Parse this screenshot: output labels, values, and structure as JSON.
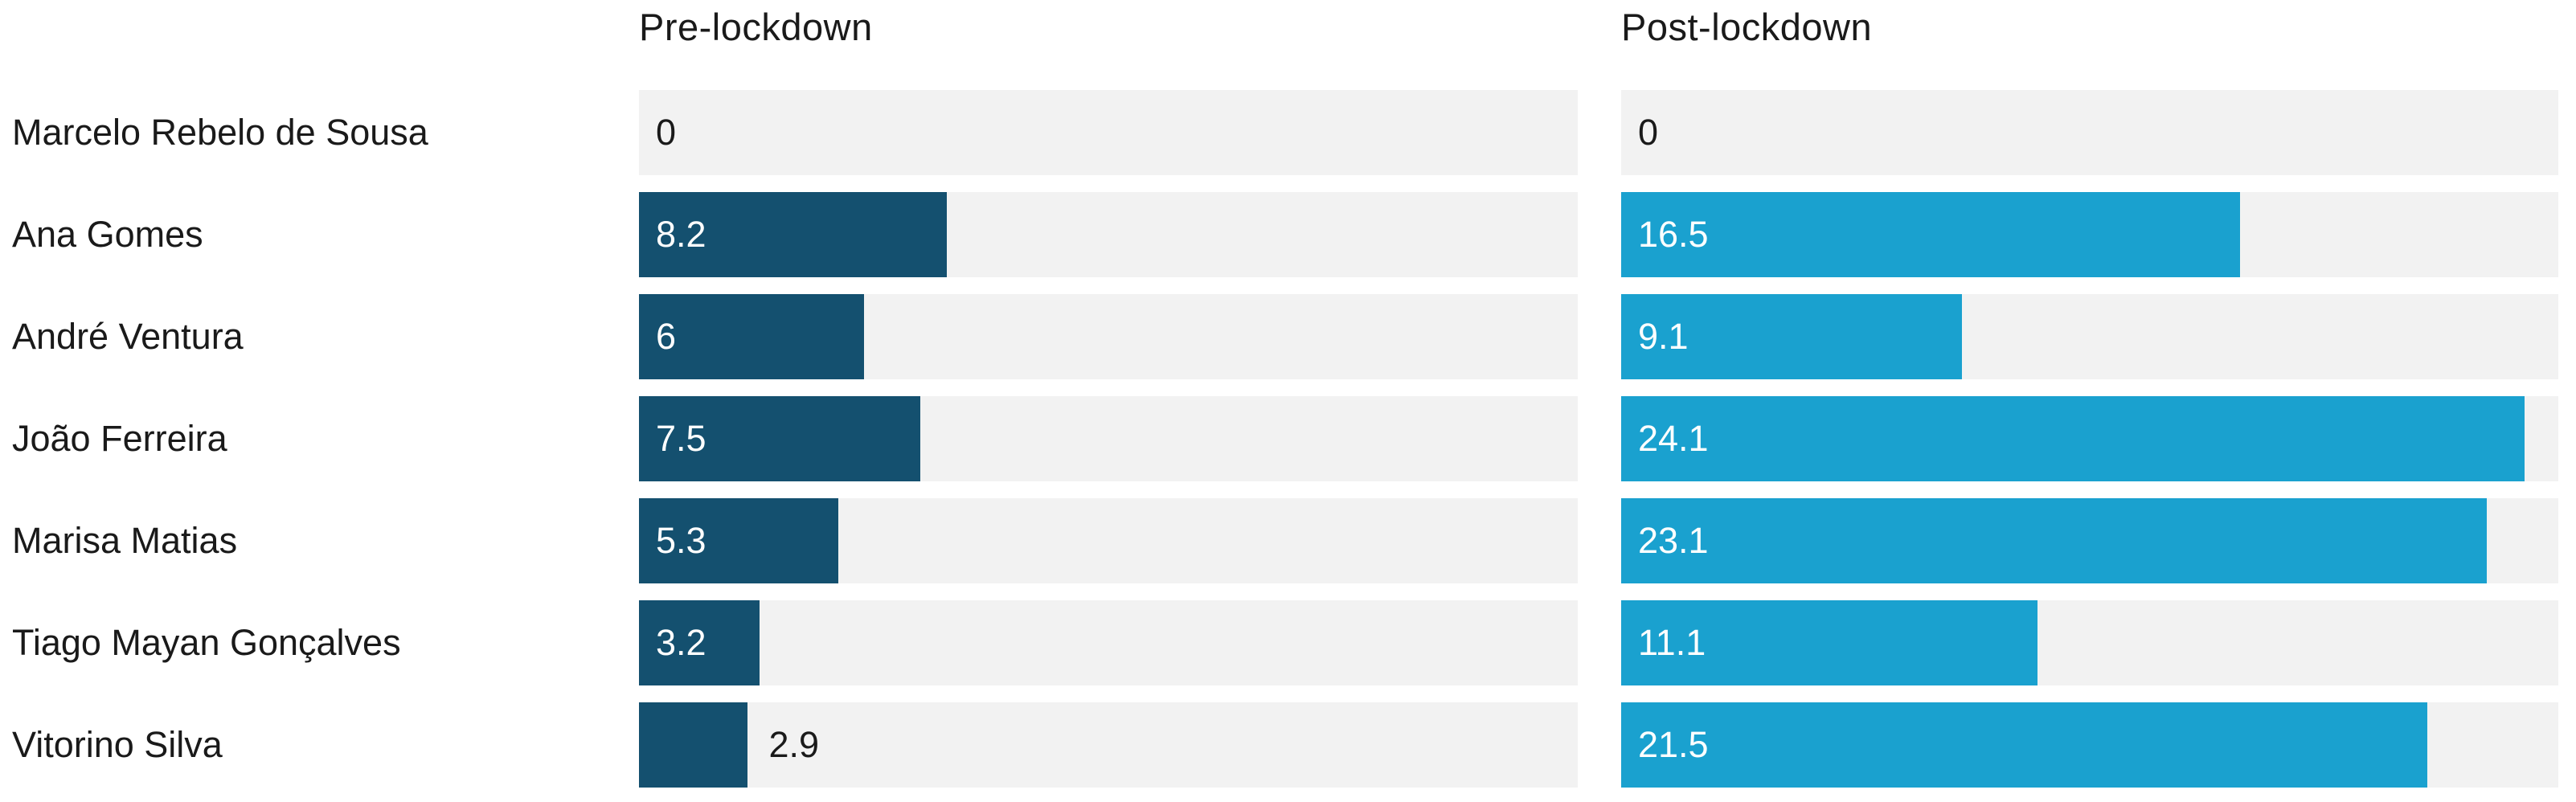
{
  "chart_data": {
    "type": "bar",
    "layout": "horizontal-split-bars",
    "categories": [
      "Marcelo Rebelo de Sousa",
      "Ana Gomes",
      "André Ventura",
      "João Ferreira",
      "Marisa Matias",
      "Tiago Mayan Gonçalves",
      "Vitorino Silva"
    ],
    "series": [
      {
        "name": "Pre-lockdown",
        "values": [
          0,
          8.2,
          6,
          7.5,
          5.3,
          3.2,
          2.9
        ]
      },
      {
        "name": "Post-lockdown",
        "values": [
          0,
          16.5,
          9.1,
          24.1,
          23.1,
          11.1,
          21.5
        ]
      }
    ],
    "title": "",
    "xlabel": "",
    "ylabel": "",
    "xlim": [
      0,
      25
    ],
    "grid": false,
    "legend_position": "column-headers",
    "value_labels": "inside-bar-start"
  },
  "headers": {
    "pre": "Pre-lockdown",
    "post": "Post-lockdown"
  },
  "scale_max": 25,
  "colors": {
    "pre_bar": "#14506f",
    "post_bar": "#1aa1cf",
    "track": "#f2f2f2",
    "label_text": "#1a1a1a",
    "value_inside_text": "#ffffff",
    "value_outside_text": "#1a1a1a",
    "background": "#ffffff"
  },
  "rows": [
    {
      "label": "Marcelo Rebelo de Sousa",
      "pre": {
        "value": 0,
        "display": "0",
        "label_position": "outside"
      },
      "post": {
        "value": 0,
        "display": "0",
        "label_position": "outside"
      }
    },
    {
      "label": "Ana Gomes",
      "pre": {
        "value": 8.2,
        "display": "8.2",
        "label_position": "inside"
      },
      "post": {
        "value": 16.5,
        "display": "16.5",
        "label_position": "inside"
      }
    },
    {
      "label": "André Ventura",
      "pre": {
        "value": 6,
        "display": "6",
        "label_position": "inside"
      },
      "post": {
        "value": 9.1,
        "display": "9.1",
        "label_position": "inside"
      }
    },
    {
      "label": "João Ferreira",
      "pre": {
        "value": 7.5,
        "display": "7.5",
        "label_position": "inside"
      },
      "post": {
        "value": 24.1,
        "display": "24.1",
        "label_position": "inside"
      }
    },
    {
      "label": "Marisa Matias",
      "pre": {
        "value": 5.3,
        "display": "5.3",
        "label_position": "inside"
      },
      "post": {
        "value": 23.1,
        "display": "23.1",
        "label_position": "inside"
      }
    },
    {
      "label": "Tiago Mayan Gonçalves",
      "pre": {
        "value": 3.2,
        "display": "3.2",
        "label_position": "inside"
      },
      "post": {
        "value": 11.1,
        "display": "11.1",
        "label_position": "inside"
      }
    },
    {
      "label": "Vitorino Silva",
      "pre": {
        "value": 2.9,
        "display": "2.9",
        "label_position": "outside"
      },
      "post": {
        "value": 21.5,
        "display": "21.5",
        "label_position": "inside"
      }
    }
  ]
}
